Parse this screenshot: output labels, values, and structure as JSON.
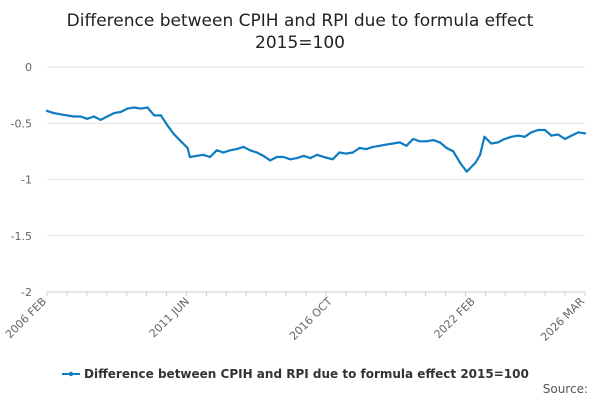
{
  "chart_data": {
    "type": "line",
    "title_lines": [
      "Difference between CPIH and RPI due to formula effect",
      "2015=100"
    ],
    "xlabel": "",
    "ylabel": "",
    "ylim": [
      -2,
      0
    ],
    "yticks": [
      "0",
      "-0.5",
      "-1",
      "-1.5",
      "-2"
    ],
    "ytick_values": [
      0,
      -0.5,
      -1,
      -1.5,
      -2
    ],
    "xticks": [
      {
        "label": "2006 FEB",
        "date": "2006-02"
      },
      {
        "label": "2011 JUN",
        "date": "2011-06"
      },
      {
        "label": "2016 OCT",
        "date": "2016-10"
      },
      {
        "label": "2022 FEB",
        "date": "2022-02"
      },
      {
        "label": "2026 MAR",
        "date": "2026-03"
      }
    ],
    "xlim": [
      "2006-02",
      "2026-03"
    ],
    "grid": "horizontal",
    "legend_position": "bottom",
    "series": [
      {
        "name": "Difference between CPIH and RPI due to formula effect 2015=100",
        "color": "#0f7cc1",
        "points": [
          [
            "2006-02",
            -0.39
          ],
          [
            "2006-05",
            -0.41
          ],
          [
            "2006-08",
            -0.42
          ],
          [
            "2006-11",
            -0.43
          ],
          [
            "2007-02",
            -0.44
          ],
          [
            "2007-05",
            -0.44
          ],
          [
            "2007-08",
            -0.46
          ],
          [
            "2007-11",
            -0.44
          ],
          [
            "2008-02",
            -0.47
          ],
          [
            "2008-05",
            -0.44
          ],
          [
            "2008-08",
            -0.41
          ],
          [
            "2008-11",
            -0.4
          ],
          [
            "2009-02",
            -0.37
          ],
          [
            "2009-05",
            -0.36
          ],
          [
            "2009-08",
            -0.37
          ],
          [
            "2009-11",
            -0.36
          ],
          [
            "2010-02",
            -0.43
          ],
          [
            "2010-05",
            -0.43
          ],
          [
            "2010-08",
            -0.52
          ],
          [
            "2010-11",
            -0.6
          ],
          [
            "2011-02",
            -0.66
          ],
          [
            "2011-05",
            -0.72
          ],
          [
            "2011-06",
            -0.8
          ],
          [
            "2011-09",
            -0.79
          ],
          [
            "2011-12",
            -0.78
          ],
          [
            "2012-03",
            -0.8
          ],
          [
            "2012-06",
            -0.74
          ],
          [
            "2012-09",
            -0.76
          ],
          [
            "2012-12",
            -0.74
          ],
          [
            "2013-03",
            -0.73
          ],
          [
            "2013-06",
            -0.71
          ],
          [
            "2013-09",
            -0.74
          ],
          [
            "2013-12",
            -0.76
          ],
          [
            "2014-03",
            -0.79
          ],
          [
            "2014-06",
            -0.83
          ],
          [
            "2014-09",
            -0.8
          ],
          [
            "2014-12",
            -0.8
          ],
          [
            "2015-03",
            -0.82
          ],
          [
            "2015-06",
            -0.81
          ],
          [
            "2015-09",
            -0.79
          ],
          [
            "2015-12",
            -0.81
          ],
          [
            "2016-03",
            -0.78
          ],
          [
            "2016-06",
            -0.8
          ],
          [
            "2016-10",
            -0.82
          ],
          [
            "2017-01",
            -0.76
          ],
          [
            "2017-04",
            -0.77
          ],
          [
            "2017-07",
            -0.76
          ],
          [
            "2017-10",
            -0.72
          ],
          [
            "2018-01",
            -0.73
          ],
          [
            "2018-04",
            -0.71
          ],
          [
            "2018-07",
            -0.7
          ],
          [
            "2018-10",
            -0.69
          ],
          [
            "2019-01",
            -0.68
          ],
          [
            "2019-04",
            -0.67
          ],
          [
            "2019-07",
            -0.7
          ],
          [
            "2019-10",
            -0.64
          ],
          [
            "2020-01",
            -0.66
          ],
          [
            "2020-04",
            -0.66
          ],
          [
            "2020-07",
            -0.65
          ],
          [
            "2020-10",
            -0.67
          ],
          [
            "2021-01",
            -0.72
          ],
          [
            "2021-04",
            -0.75
          ],
          [
            "2021-07",
            -0.85
          ],
          [
            "2021-10",
            -0.93
          ],
          [
            "2022-01",
            -0.87
          ],
          [
            "2022-02",
            -0.85
          ],
          [
            "2022-04",
            -0.78
          ],
          [
            "2022-06",
            -0.62
          ],
          [
            "2022-09",
            -0.68
          ],
          [
            "2022-12",
            -0.67
          ],
          [
            "2023-03",
            -0.64
          ],
          [
            "2023-06",
            -0.62
          ],
          [
            "2023-09",
            -0.61
          ],
          [
            "2023-12",
            -0.62
          ],
          [
            "2024-03",
            -0.58
          ],
          [
            "2024-06",
            -0.56
          ],
          [
            "2024-09",
            -0.56
          ],
          [
            "2024-12",
            -0.61
          ],
          [
            "2025-03",
            -0.6
          ],
          [
            "2025-06",
            -0.64
          ],
          [
            "2025-09",
            -0.61
          ],
          [
            "2025-12",
            -0.58
          ],
          [
            "2026-03",
            -0.59
          ]
        ]
      }
    ]
  },
  "source_label": "Source:"
}
